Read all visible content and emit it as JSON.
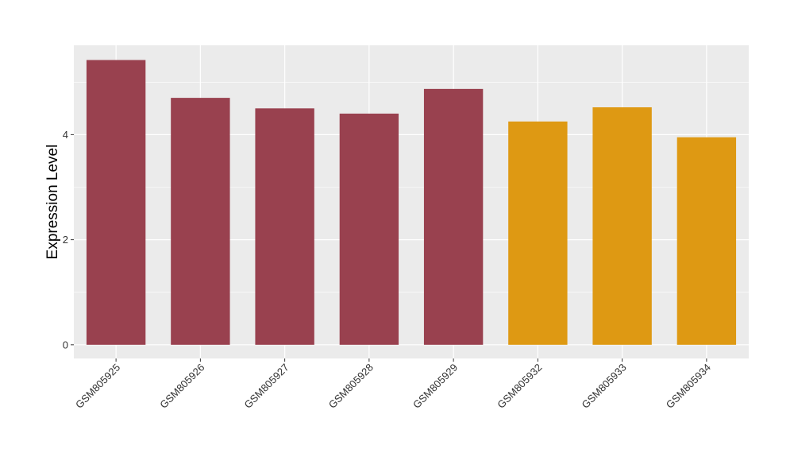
{
  "chart_data": {
    "type": "bar",
    "title": "",
    "xlabel": "",
    "ylabel": "Expression Level",
    "categories": [
      "GSM805925",
      "GSM805926",
      "GSM805927",
      "GSM805928",
      "GSM805929",
      "GSM805932",
      "GSM805933",
      "GSM805934"
    ],
    "values": [
      5.42,
      4.7,
      4.5,
      4.4,
      4.87,
      4.25,
      4.52,
      3.95
    ],
    "groups": [
      "a",
      "a",
      "a",
      "a",
      "a",
      "b",
      "b",
      "b"
    ],
    "group_colors": {
      "a": "#99414F",
      "b": "#DE9913"
    },
    "ylim": [
      -0.26,
      5.7
    ],
    "yticks": [
      0,
      2,
      4
    ],
    "grid": true,
    "legend": "none",
    "panel_background": "#EBEBEB",
    "grid_color": "#FFFFFF"
  }
}
